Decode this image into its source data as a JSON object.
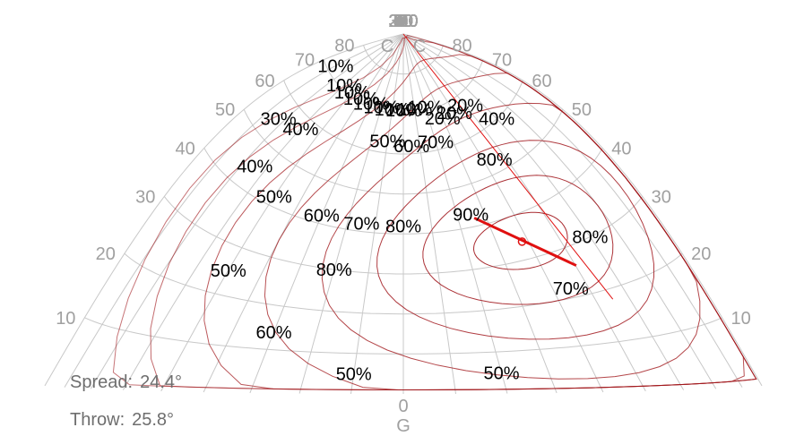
{
  "chart_data": {
    "type": "polar-isocandela",
    "c_plane_ticks": [
      "270",
      "280",
      "290",
      "300",
      "310",
      "320",
      "330",
      "340",
      "350",
      "0",
      "10",
      "20",
      "30",
      "40",
      "50",
      "60",
      "70",
      "80",
      "90"
    ],
    "c_plane_values": [
      270,
      280,
      290,
      300,
      310,
      320,
      330,
      340,
      350,
      0,
      10,
      20,
      30,
      40,
      50,
      60,
      70,
      80,
      90
    ],
    "gamma_ticks": [
      "80",
      "70",
      "60",
      "50",
      "40",
      "30",
      "20",
      "10"
    ],
    "gamma_values": [
      80,
      70,
      60,
      50,
      40,
      30,
      20,
      10
    ],
    "c_edge_label": "C",
    "gamma_label": "G",
    "gamma_zero_label": "0",
    "isocandela_levels": [
      "10%",
      "20%",
      "30%",
      "40%",
      "50%",
      "60%",
      "70%",
      "80%",
      "90%"
    ],
    "contour_labels": [
      {
        "text": "10%",
        "c": 300,
        "g": 71
      },
      {
        "text": "10%",
        "c": 310,
        "g": 71
      },
      {
        "text": "10%",
        "c": 320,
        "g": 71
      },
      {
        "text": "10%",
        "c": 330,
        "g": 71
      },
      {
        "text": "10%",
        "c": 340,
        "g": 71
      },
      {
        "text": "10%",
        "c": 350,
        "g": 71
      },
      {
        "text": "10%",
        "c": 0,
        "g": 71
      },
      {
        "text": "10%",
        "c": 10,
        "g": 71
      },
      {
        "text": "10%",
        "c": 20,
        "g": 71
      },
      {
        "text": "10%",
        "c": 280,
        "g": 72
      },
      {
        "text": "20%",
        "c": 30,
        "g": 67
      },
      {
        "text": "20%",
        "c": 40,
        "g": 67
      },
      {
        "text": "20%",
        "c": 50,
        "g": 67
      },
      {
        "text": "30%",
        "c": 287,
        "g": 55
      },
      {
        "text": "40%",
        "c": 300,
        "g": 57
      },
      {
        "text": "40%",
        "c": 295,
        "g": 45
      },
      {
        "text": "40%",
        "c": 60,
        "g": 60
      },
      {
        "text": "50%",
        "c": 350,
        "g": 63
      },
      {
        "text": "50%",
        "c": 310,
        "g": 42
      },
      {
        "text": "50%",
        "c": 310,
        "g": 25
      },
      {
        "text": "50%",
        "c": 350,
        "g": 5
      },
      {
        "text": "50%",
        "c": 20,
        "g": 5
      },
      {
        "text": "60%",
        "c": 5,
        "g": 62
      },
      {
        "text": "60%",
        "c": 330,
        "g": 42
      },
      {
        "text": "60%",
        "c": 330,
        "g": 14
      },
      {
        "text": "70%",
        "c": 20,
        "g": 62
      },
      {
        "text": "70%",
        "c": 345,
        "g": 42
      },
      {
        "text": "70%",
        "c": 45,
        "g": 22
      },
      {
        "text": "80%",
        "c": 45,
        "g": 53
      },
      {
        "text": "80%",
        "c": 0,
        "g": 42
      },
      {
        "text": "80%",
        "c": 340,
        "g": 30
      },
      {
        "text": "80%",
        "c": 60,
        "g": 30
      },
      {
        "text": "90%",
        "c": 25,
        "g": 43
      }
    ],
    "beam_center": {
      "c": 38,
      "g": 34
    },
    "spread_deg": 24.4,
    "throw_deg": 25.8,
    "grid": true
  },
  "readouts": {
    "spread_label": "Spread:",
    "spread_value": "24.4°",
    "throw_label": "Throw:",
    "throw_value": "25.8°"
  },
  "colors": {
    "grid": "#c8c8c8",
    "tick": "#a0a0a0",
    "contour": "#a0151a",
    "highlight": "#e01010",
    "label": "#000000",
    "readout": "#6e6e6e"
  }
}
